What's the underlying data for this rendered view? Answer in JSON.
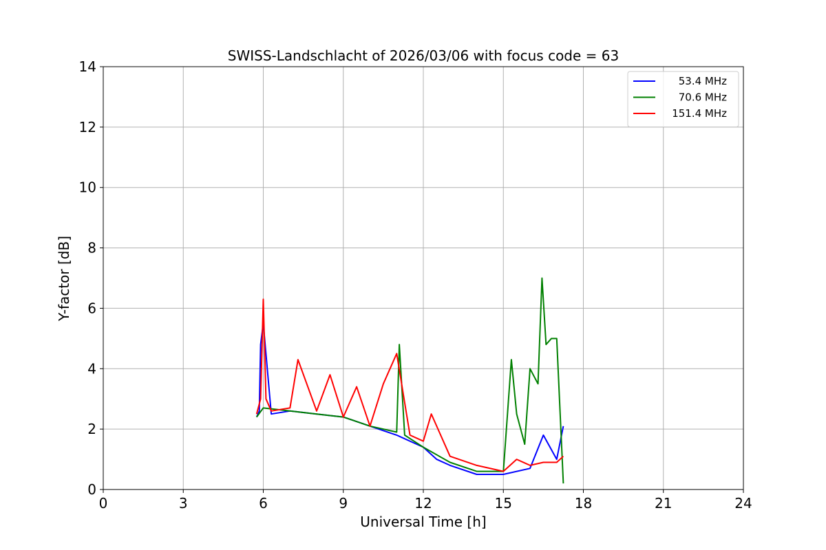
{
  "chart_data": {
    "type": "line",
    "title": "SWISS-Landschlacht of 2026/03/06 with focus code = 63",
    "xlabel": "Universal Time [h]",
    "ylabel": "Y-factor [dB]",
    "xlim": [
      0,
      24
    ],
    "ylim": [
      0,
      14
    ],
    "xticks": [
      0,
      3,
      6,
      9,
      12,
      15,
      18,
      21,
      24
    ],
    "yticks": [
      0,
      2,
      4,
      6,
      8,
      10,
      12,
      14
    ],
    "grid": true,
    "legend_position": "top-right",
    "series": [
      {
        "name": "53.4 MHz",
        "color": "#0000ff",
        "x": [
          5.75,
          5.85,
          5.9,
          6.0,
          6.3,
          7.0,
          8.0,
          9.0,
          10.0,
          11.0,
          12.0,
          12.5,
          13.0,
          14.0,
          15.0,
          16.0,
          16.5,
          17.0,
          17.25
        ],
        "y": [
          2.4,
          2.6,
          4.8,
          5.5,
          2.5,
          2.6,
          2.5,
          2.4,
          2.1,
          1.8,
          1.4,
          1.0,
          0.8,
          0.5,
          0.5,
          0.7,
          1.8,
          1.0,
          2.1
        ]
      },
      {
        "name": "70.6 MHz",
        "color": "#008000",
        "x": [
          5.75,
          6.0,
          7.0,
          8.0,
          9.0,
          10.0,
          11.0,
          11.1,
          11.3,
          12.0,
          13.0,
          14.0,
          15.0,
          15.3,
          15.5,
          15.8,
          16.0,
          16.3,
          16.45,
          16.6,
          16.8,
          17.0,
          17.25
        ],
        "y": [
          2.4,
          2.7,
          2.6,
          2.5,
          2.4,
          2.1,
          1.9,
          4.8,
          1.8,
          1.4,
          0.9,
          0.6,
          0.6,
          4.3,
          2.5,
          1.5,
          4.0,
          3.5,
          7.0,
          4.8,
          5.0,
          5.0,
          0.2
        ]
      },
      {
        "name": "151.4 MHz",
        "color": "#ff0000",
        "x": [
          5.75,
          5.9,
          6.0,
          6.1,
          6.3,
          7.0,
          7.3,
          8.0,
          8.5,
          9.0,
          9.5,
          10.0,
          10.5,
          11.0,
          11.5,
          12.0,
          12.3,
          13.0,
          14.0,
          15.0,
          15.5,
          16.0,
          16.5,
          17.0,
          17.25
        ],
        "y": [
          2.5,
          3.0,
          6.3,
          3.0,
          2.6,
          2.7,
          4.3,
          2.6,
          3.8,
          2.4,
          3.4,
          2.1,
          3.5,
          4.5,
          1.8,
          1.6,
          2.5,
          1.1,
          0.8,
          0.6,
          1.0,
          0.8,
          0.9,
          0.9,
          1.1
        ]
      }
    ]
  }
}
